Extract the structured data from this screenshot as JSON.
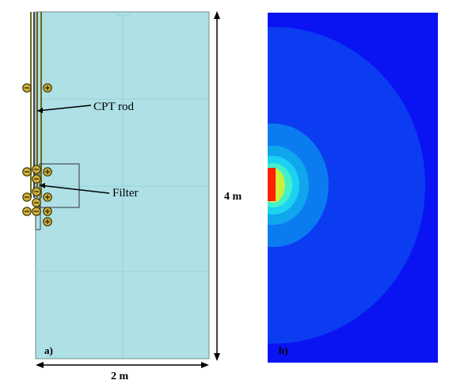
{
  "panel_a": {
    "label": "a)",
    "annotations": {
      "rod": "CPT rod",
      "filter": "Filter"
    },
    "dimensions": {
      "height": "4 m",
      "width": "2 m"
    },
    "colors": {
      "domain_fill": "#aee0e6",
      "grid": "#8fd0d9",
      "rod": "#6b6a1e",
      "node": "#d1b23a"
    }
  },
  "panel_b": {
    "label": "b)",
    "colors": {
      "background": "#0a14f2",
      "outer_zone": "#0b3cf2",
      "mid_zone": "#0a7cf0",
      "inner_zone_1": "#0fa6ee",
      "inner_zone_2": "#1bd3f0",
      "inner_zone_3": "#42f0cc",
      "inner_zone_4": "#c8f03c",
      "source": "#ff2000"
    }
  }
}
